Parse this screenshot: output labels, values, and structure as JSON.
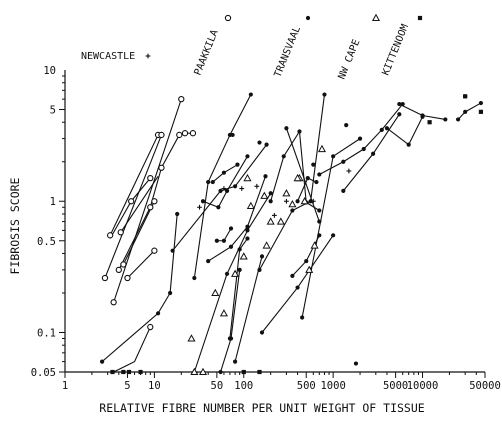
{
  "chart_data": {
    "type": "line",
    "xscale": "log",
    "yscale": "log",
    "xlabel": "RELATIVE FIBRE NUMBER PER UNIT WEIGHT OF TISSUE",
    "ylabel": "FIBROSIS SCORE",
    "xlim": [
      1,
      50000
    ],
    "ylim": [
      0.05,
      10
    ],
    "x_ticks": [
      {
        "value": 1,
        "label": "1"
      },
      {
        "value": 5,
        "label": "5"
      },
      {
        "value": 10,
        "label": "10"
      },
      {
        "value": 50,
        "label": "50"
      },
      {
        "value": 100,
        "label": "100"
      },
      {
        "value": 500,
        "label": "500"
      },
      {
        "value": 1000,
        "label": "1000"
      },
      {
        "value": 5000,
        "label": "5000"
      },
      {
        "value": 10000,
        "label": "10000"
      },
      {
        "value": 50000,
        "label": "50000"
      }
    ],
    "y_ticks": [
      {
        "value": 0.05,
        "label": "0.05"
      },
      {
        "value": 0.1,
        "label": "0.1"
      },
      {
        "value": 0.5,
        "label": "0.5"
      },
      {
        "value": 1,
        "label": "1"
      },
      {
        "value": 5,
        "label": "5"
      },
      {
        "value": 10,
        "label": "10"
      }
    ],
    "series_labels": [
      {
        "name": "NEWCASTLE",
        "marker": "cross"
      },
      {
        "name": "PAAKKILA",
        "marker": "open-circle"
      },
      {
        "name": "TRANSVAAL",
        "marker": "filled-circle"
      },
      {
        "name": "NW CAPE",
        "marker": "open-triangle"
      },
      {
        "name": "KITTENOOM",
        "marker": "filled-square"
      }
    ],
    "series": [
      {
        "marker": "open-circle",
        "segments": [
          [
            [
              3.2,
              0.55
            ],
            [
              11,
              3.2
            ]
          ],
          [
            [
              2.8,
              0.26
            ],
            [
              12,
              3.2
            ]
          ],
          [
            [
              3.5,
              0.17
            ],
            [
              20,
              6
            ]
          ],
          [
            [
              3.2,
              0.52
            ],
            [
              5.5,
              1.0
            ],
            [
              9,
              1.5
            ]
          ],
          [
            [
              4,
              0.3
            ],
            [
              9,
              0.9
            ],
            [
              12,
              1.8
            ],
            [
              19,
              3.2
            ]
          ],
          [
            [
              4.5,
              0.33
            ],
            [
              10,
              1.0
            ]
          ],
          [
            [
              3.5,
              0.05
            ],
            [
              6,
              0.06
            ],
            [
              9,
              0.11
            ]
          ],
          [
            [
              5,
              0.26
            ],
            [
              10,
              0.42
            ]
          ],
          [
            [
              4.2,
              0.58
            ],
            [
              11,
              1.55
            ]
          ],
          [
            [
              22,
              3.3
            ],
            [
              27,
              3.3
            ]
          ]
        ],
        "points": [
          [
            3.2,
            0.55
          ],
          [
            2.8,
            0.26
          ],
          [
            3.5,
            0.17
          ],
          [
            11,
            3.2
          ],
          [
            12,
            3.2
          ],
          [
            5.5,
            1.0
          ],
          [
            9,
            1.5
          ],
          [
            9,
            0.9
          ],
          [
            10,
            1.0
          ],
          [
            4,
            0.3
          ],
          [
            4.5,
            0.33
          ],
          [
            5,
            0.26
          ],
          [
            10,
            0.42
          ],
          [
            9,
            0.11
          ],
          [
            4.2,
            0.58
          ],
          [
            12,
            1.8
          ],
          [
            19,
            3.2
          ],
          [
            20,
            6
          ],
          [
            22,
            3.3
          ],
          [
            27,
            3.3
          ]
        ]
      },
      {
        "marker": "filled-circle",
        "segments": [
          [
            [
              2.6,
              0.06
            ],
            [
              11,
              0.14
            ],
            [
              15,
              0.2
            ],
            [
              18,
              0.8
            ]
          ],
          [
            [
              16,
              0.42
            ],
            [
              55,
              1.2
            ],
            [
              80,
              1.3
            ],
            [
              180,
              2.7
            ]
          ],
          [
            [
              28,
              0.26
            ],
            [
              40,
              1.4
            ],
            [
              70,
              3.2
            ],
            [
              120,
              6.5
            ]
          ],
          [
            [
              35,
              1.0
            ],
            [
              52,
              0.9
            ],
            [
              65,
              1.2
            ],
            [
              110,
              2.2
            ]
          ],
          [
            [
              50,
              0.5
            ],
            [
              60,
              0.5
            ],
            [
              72,
              0.62
            ]
          ],
          [
            [
              40,
              0.35
            ],
            [
              72,
              0.45
            ],
            [
              110,
              0.64
            ],
            [
              175,
              1.55
            ]
          ],
          [
            [
              45,
              1.4
            ],
            [
              60,
              1.65
            ],
            [
              85,
              1.9
            ]
          ],
          [
            [
              28,
              0.05
            ],
            [
              65,
              0.28
            ],
            [
              110,
              0.6
            ],
            [
              200,
              1.15
            ]
          ],
          [
            [
              70,
              0.09
            ],
            [
              90,
              0.43
            ],
            [
              110,
              0.52
            ]
          ],
          [
            [
              55,
              0.05
            ],
            [
              72,
              0.09
            ],
            [
              90,
              0.3
            ]
          ],
          [
            [
              80,
              0.06
            ],
            [
              160,
              0.38
            ]
          ],
          [
            [
              200,
              1.0
            ],
            [
              280,
              2.2
            ],
            [
              420,
              3.4
            ],
            [
              500,
              0.98
            ],
            [
              700,
              0.85
            ]
          ],
          [
            [
              150,
              0.3
            ],
            [
              350,
              0.85
            ],
            [
              560,
              1.0
            ],
            [
              800,
              6.5
            ]
          ],
          [
            [
              400,
              1.0
            ],
            [
              520,
              1.5
            ],
            [
              650,
              1.4
            ]
          ],
          [
            [
              300,
              3.6
            ],
            [
              700,
              0.7
            ]
          ],
          [
            [
              450,
              0.13
            ],
            [
              1000,
              2.2
            ],
            [
              2000,
              3.0
            ]
          ],
          [
            [
              350,
              0.27
            ],
            [
              500,
              0.35
            ],
            [
              700,
              0.55
            ]
          ],
          [
            [
              700,
              1.6
            ],
            [
              1300,
              2.0
            ],
            [
              2200,
              2.5
            ],
            [
              3500,
              3.5
            ],
            [
              6000,
              5.5
            ]
          ],
          [
            [
              1300,
              1.2
            ],
            [
              2800,
              2.3
            ],
            [
              5500,
              4.6
            ]
          ],
          [
            [
              4000,
              3.6
            ],
            [
              7000,
              2.7
            ],
            [
              10000,
              4.4
            ]
          ],
          [
            [
              5500,
              5.5
            ],
            [
              10000,
              4.5
            ],
            [
              18000,
              4.2
            ]
          ],
          [
            [
              25000,
              4.2
            ],
            [
              30000,
              4.8
            ],
            [
              45000,
              5.6
            ]
          ],
          [
            [
              160,
              0.1
            ],
            [
              400,
              0.22
            ],
            [
              1000,
              0.55
            ]
          ]
        ],
        "points": [
          [
            2.6,
            0.06
          ],
          [
            11,
            0.14
          ],
          [
            15,
            0.2
          ],
          [
            18,
            0.8
          ],
          [
            16,
            0.42
          ],
          [
            55,
            1.2
          ],
          [
            80,
            1.3
          ],
          [
            180,
            2.7
          ],
          [
            28,
            0.26
          ],
          [
            40,
            1.4
          ],
          [
            70,
            3.2
          ],
          [
            120,
            6.5
          ],
          [
            35,
            1.0
          ],
          [
            52,
            0.9
          ],
          [
            65,
            1.2
          ],
          [
            110,
            2.2
          ],
          [
            50,
            0.5
          ],
          [
            60,
            0.5
          ],
          [
            72,
            0.62
          ],
          [
            40,
            0.35
          ],
          [
            72,
            0.45
          ],
          [
            110,
            0.64
          ],
          [
            175,
            1.55
          ],
          [
            45,
            1.4
          ],
          [
            60,
            1.65
          ],
          [
            85,
            1.9
          ],
          [
            28,
            0.05
          ],
          [
            65,
            0.28
          ],
          [
            110,
            0.6
          ],
          [
            200,
            1.15
          ],
          [
            70,
            0.09
          ],
          [
            90,
            0.43
          ],
          [
            110,
            0.52
          ],
          [
            55,
            0.05
          ],
          [
            72,
            0.09
          ],
          [
            90,
            0.3
          ],
          [
            80,
            0.06
          ],
          [
            160,
            0.38
          ],
          [
            200,
            1.0
          ],
          [
            280,
            2.2
          ],
          [
            420,
            3.4
          ],
          [
            500,
            0.98
          ],
          [
            700,
            0.85
          ],
          [
            150,
            0.3
          ],
          [
            350,
            0.85
          ],
          [
            560,
            1.0
          ],
          [
            800,
            6.5
          ],
          [
            400,
            1.0
          ],
          [
            520,
            1.5
          ],
          [
            650,
            1.4
          ],
          [
            300,
            3.6
          ],
          [
            700,
            0.7
          ],
          [
            450,
            0.13
          ],
          [
            1000,
            2.2
          ],
          [
            2000,
            3.0
          ],
          [
            350,
            0.27
          ],
          [
            500,
            0.35
          ],
          [
            700,
            0.55
          ],
          [
            700,
            1.6
          ],
          [
            1300,
            2.0
          ],
          [
            2200,
            2.5
          ],
          [
            3500,
            3.5
          ],
          [
            6000,
            5.5
          ],
          [
            1300,
            1.2
          ],
          [
            2800,
            2.3
          ],
          [
            5500,
            4.6
          ],
          [
            4000,
            3.6
          ],
          [
            7000,
            2.7
          ],
          [
            10000,
            4.4
          ],
          [
            5500,
            5.5
          ],
          [
            10000,
            4.5
          ],
          [
            18000,
            4.2
          ],
          [
            25000,
            4.2
          ],
          [
            30000,
            4.8
          ],
          [
            45000,
            5.6
          ],
          [
            160,
            0.1
          ],
          [
            400,
            0.22
          ],
          [
            1000,
            0.55
          ],
          [
            30000,
            6.3
          ],
          [
            1800,
            0.058
          ],
          [
            700,
            0.04
          ],
          [
            75,
            3.2
          ],
          [
            150,
            2.8
          ],
          [
            600,
            1.9
          ],
          [
            1400,
            3.8
          ]
        ]
      },
      {
        "marker": "open-triangle",
        "segments": [],
        "points": [
          [
            28,
            0.05
          ],
          [
            35,
            0.05
          ],
          [
            48,
            0.2
          ],
          [
            60,
            0.14
          ],
          [
            80,
            0.28
          ],
          [
            100,
            0.38
          ],
          [
            120,
            0.92
          ],
          [
            170,
            1.1
          ],
          [
            200,
            0.7
          ],
          [
            260,
            0.7
          ],
          [
            350,
            0.95
          ],
          [
            420,
            1.5
          ],
          [
            480,
            1.0
          ],
          [
            540,
            0.3
          ],
          [
            620,
            0.46
          ],
          [
            750,
            2.5
          ],
          [
            26,
            0.09
          ],
          [
            110,
            1.5
          ],
          [
            180,
            0.46
          ],
          [
            300,
            1.15
          ],
          [
            400,
            1.5
          ]
        ]
      },
      {
        "marker": "cross",
        "segments": [],
        "points": [
          [
            32,
            0.9
          ],
          [
            60,
            1.25
          ],
          [
            95,
            1.25
          ],
          [
            140,
            1.3
          ],
          [
            220,
            0.78
          ],
          [
            300,
            1.0
          ],
          [
            600,
            1.0
          ],
          [
            1500,
            1.7
          ]
        ]
      },
      {
        "marker": "filled-square",
        "segments": [],
        "points": [
          [
            3.4,
            0.05
          ],
          [
            4.5,
            0.05
          ],
          [
            5.2,
            0.05
          ],
          [
            7,
            0.05
          ],
          [
            100,
            0.05
          ],
          [
            150,
            0.05
          ],
          [
            12000,
            4.0
          ],
          [
            45000,
            4.8
          ],
          [
            30000,
            6.3
          ]
        ]
      }
    ]
  }
}
